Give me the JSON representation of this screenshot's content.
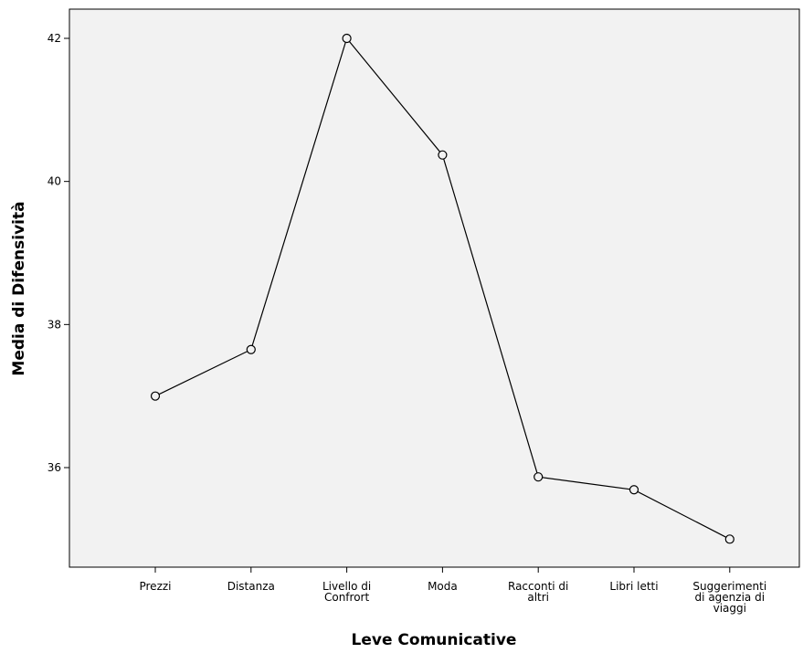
{
  "chart_data": {
    "type": "line",
    "categories": [
      [
        "Prezzi"
      ],
      [
        "Distanza"
      ],
      [
        "Livello di",
        "Confrort"
      ],
      [
        "Moda"
      ],
      [
        "Racconti di",
        "altri"
      ],
      [
        "Libri letti"
      ],
      [
        "Suggerimenti",
        "di agenzia di",
        "viaggi"
      ]
    ],
    "values": [
      37.0,
      37.65,
      42.0,
      40.37,
      35.87,
      35.69,
      35.0
    ],
    "xlabel": "Leve Comunicative",
    "ylabel": "Media di Difensività",
    "ylim": [
      34.2,
      42.4
    ],
    "yticks": [
      36,
      38,
      40,
      42
    ],
    "grid": false,
    "marker": "open-circle",
    "colors": {
      "plot_background": "#f2f2f2",
      "line": "#000000",
      "marker_fill": "#f2f2f2"
    }
  }
}
